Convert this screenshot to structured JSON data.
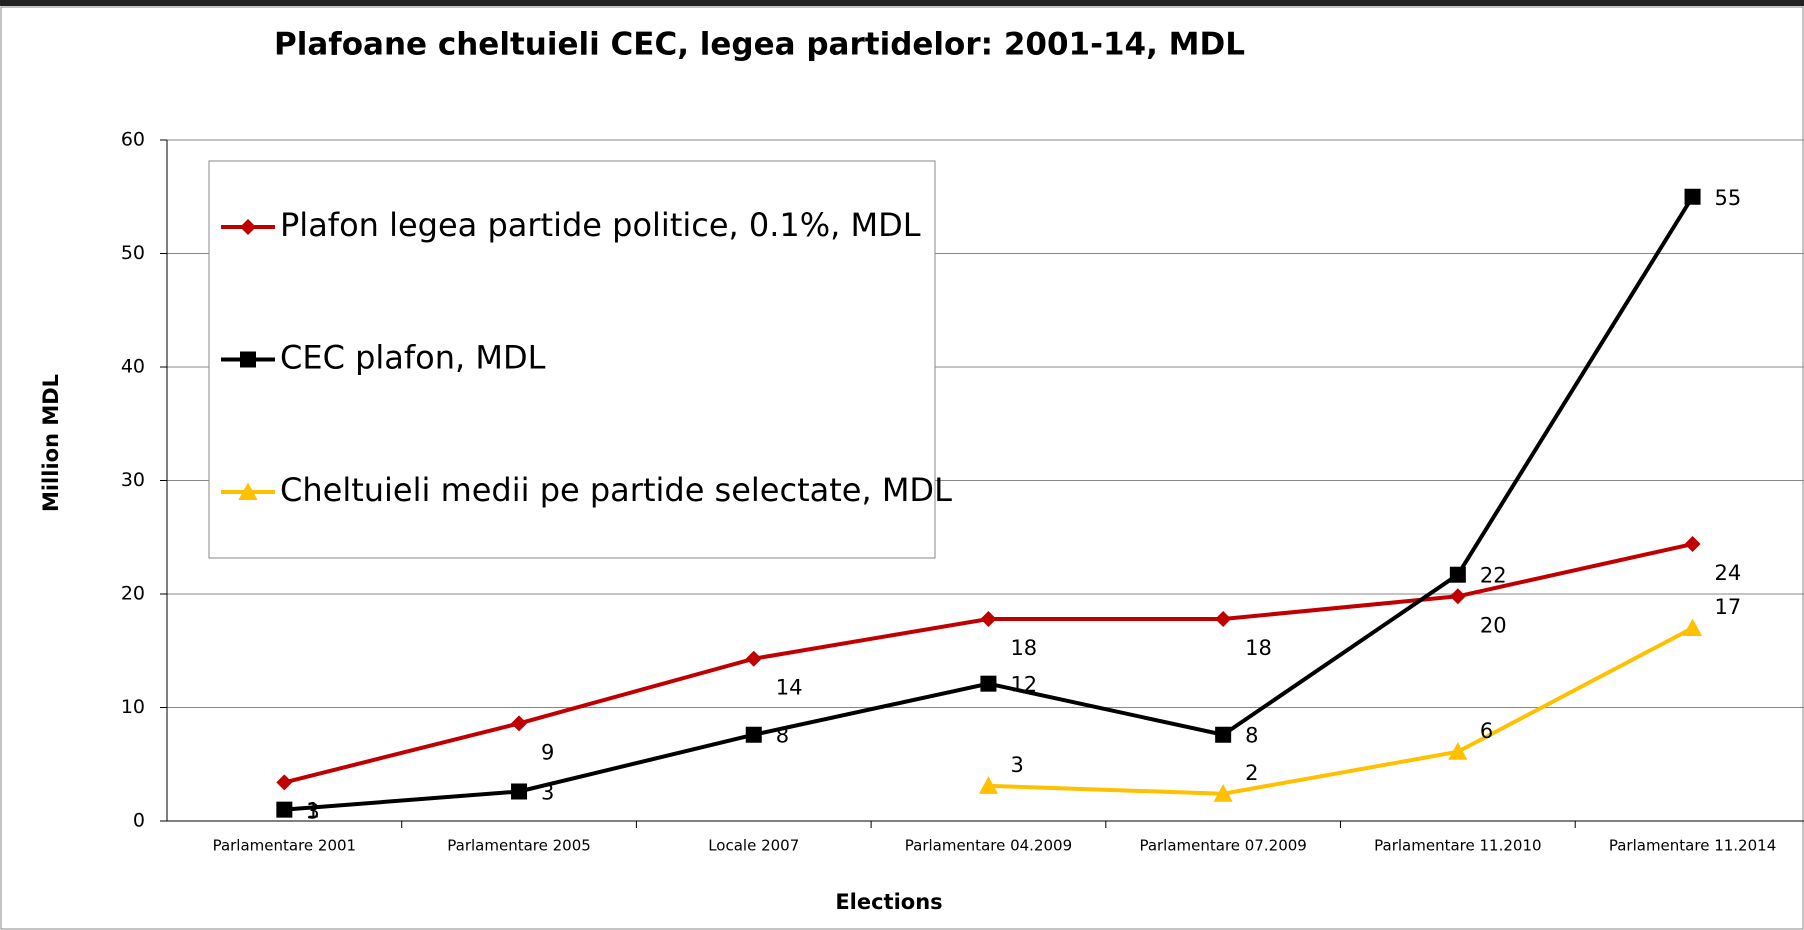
{
  "chart_data": {
    "type": "line",
    "title": "Plafoane cheltuieli CEC, legea partidelor: 2001-14, MDL",
    "x_label": "Elections",
    "y_label": "Million MDL",
    "categories": [
      "Parlamentare 2001",
      "Parlamentare 2005",
      "Locale 2007",
      "Parlamentare 04.2009",
      "Parlamentare 07.2009",
      "Parlamentare 11.2010",
      "Parlamentare 11.2014"
    ],
    "series": [
      {
        "name": "Plafon legea partide politice, 0.1%, MDL",
        "color": "#c00000",
        "marker": "diamond",
        "values": [
          3.4,
          8.6,
          14.3,
          17.8,
          17.8,
          19.8,
          24.4
        ],
        "value_labels": [
          "3",
          "9",
          "14",
          "18",
          "18",
          "20",
          "24"
        ]
      },
      {
        "name": "CEC plafon, MDL",
        "color": "#000000",
        "marker": "square",
        "values": [
          1,
          2.6,
          7.6,
          12.1,
          7.6,
          21.7,
          55
        ],
        "value_labels": [
          "1",
          "3",
          "8",
          "12",
          "8",
          "22",
          "55"
        ]
      },
      {
        "name": "Cheltuieli medii pe partide selectate, MDL",
        "color": "#ffc000",
        "marker": "triangle",
        "values": [
          null,
          null,
          null,
          3.1,
          2.4,
          6.1,
          17
        ],
        "value_labels": [
          null,
          null,
          null,
          "3",
          "2",
          "6",
          "17"
        ]
      }
    ],
    "ylim": [
      0,
      60
    ],
    "yticks": [
      0,
      10,
      20,
      30,
      40,
      50,
      60
    ],
    "grid": true,
    "legend": "upper left"
  }
}
